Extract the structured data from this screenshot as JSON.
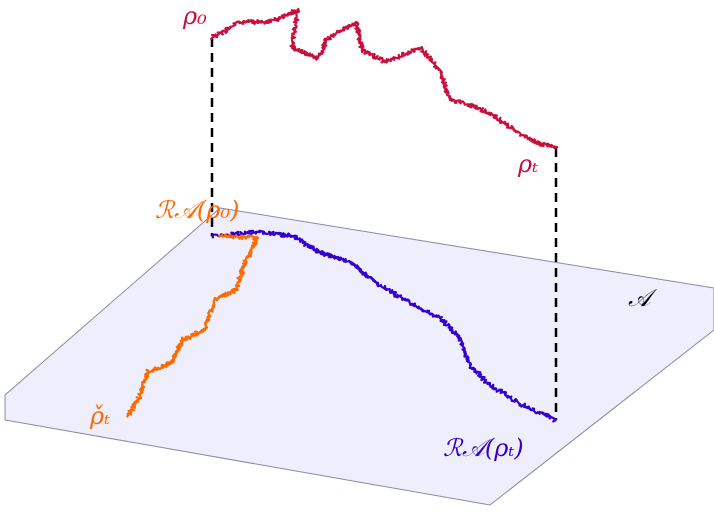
{
  "labels": {
    "rho_0": "ρ₀",
    "rho_t": "ρₜ",
    "proj_rho_0": "ℛ𝒜(ρ₀)",
    "rho_check_t": "ρ̌ₜ",
    "proj_rho_t": "ℛ𝒜(ρₜ)",
    "set": "𝒜"
  }
}
